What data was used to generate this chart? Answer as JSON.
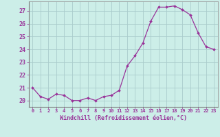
{
  "hours": [
    0,
    1,
    2,
    3,
    4,
    5,
    6,
    7,
    8,
    9,
    10,
    11,
    12,
    13,
    14,
    15,
    16,
    17,
    18,
    19,
    20,
    21,
    22,
    23
  ],
  "values": [
    21.0,
    20.3,
    20.1,
    20.5,
    20.4,
    20.0,
    20.0,
    20.2,
    20.0,
    20.3,
    20.4,
    20.8,
    22.7,
    23.5,
    24.5,
    26.2,
    27.3,
    27.3,
    27.4,
    27.1,
    26.7,
    25.3,
    24.2,
    24.0
  ],
  "ylim": [
    19.5,
    27.75
  ],
  "yticks": [
    20,
    21,
    22,
    23,
    24,
    25,
    26,
    27
  ],
  "line_color": "#993399",
  "marker_color": "#993399",
  "bg_color": "#cceee8",
  "grid_color": "#aacccc",
  "axis_label_color": "#993399",
  "tick_label_color": "#993399",
  "xlabel": "Windchill (Refroidissement éolien,°C)",
  "spine_color": "#999999"
}
